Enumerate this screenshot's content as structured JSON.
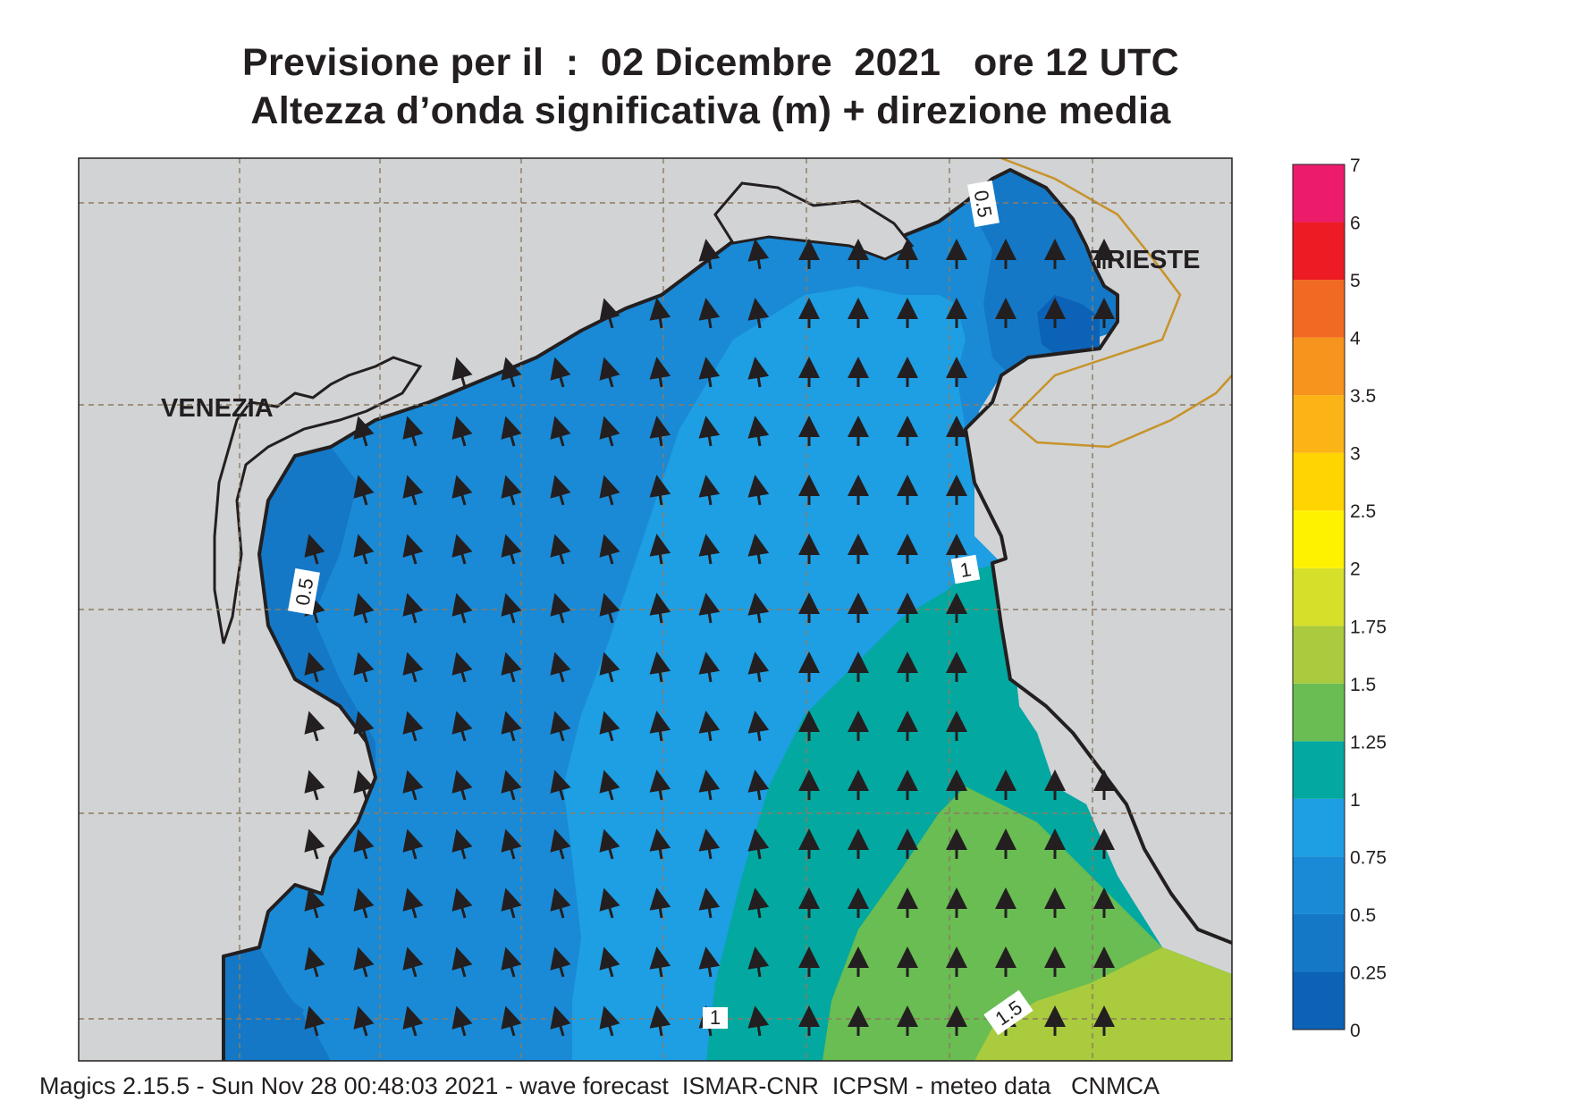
{
  "title": {
    "line1": "Previsione per il  :  02 Dicembre  2021   ore 12 UTC",
    "line2": "Altezza d’onda significativa (m) + direzione media"
  },
  "places": {
    "venezia": "VENEZIA",
    "trieste": "TRIESTE"
  },
  "contour_labels": {
    "a": "0.5",
    "b": "0.5",
    "c": "1",
    "d": "1",
    "e": "1.5"
  },
  "legend": {
    "levels": [
      "0",
      "0.25",
      "0.5",
      "0.75",
      "1",
      "1.25",
      "1.5",
      "1.75",
      "2",
      "2.5",
      "3",
      "3.5",
      "4",
      "5",
      "6",
      "7"
    ],
    "colors": [
      "#0c62b6",
      "#1478c6",
      "#1a8ad6",
      "#1e9ee3",
      "#03a8a0",
      "#69bd52",
      "#a9cb3d",
      "#d6df2a",
      "#fff200",
      "#ffd400",
      "#fcb315",
      "#f7941d",
      "#f26a21",
      "#ed1c24",
      "#ec1c6b"
    ]
  },
  "colors": {
    "land": "#d1d3d4",
    "sea_0_25_0_5": "#1478c6",
    "sea_0_5_0_75": "#1a8ad6",
    "sea_0_75_1": "#1e9ee3",
    "sea_1_1_25": "#03a8a0",
    "sea_1_25_1_5": "#69bd52",
    "sea_1_5_1_75": "#a9cb3d",
    "sea_0_0_25": "#0c62b6"
  },
  "footer": "Magics 2.15.5 - Sun Nov 28 00:48:03 2021 - wave forecast  ISMAR-CNR  ICPSM - meteo data   CNMCA"
}
